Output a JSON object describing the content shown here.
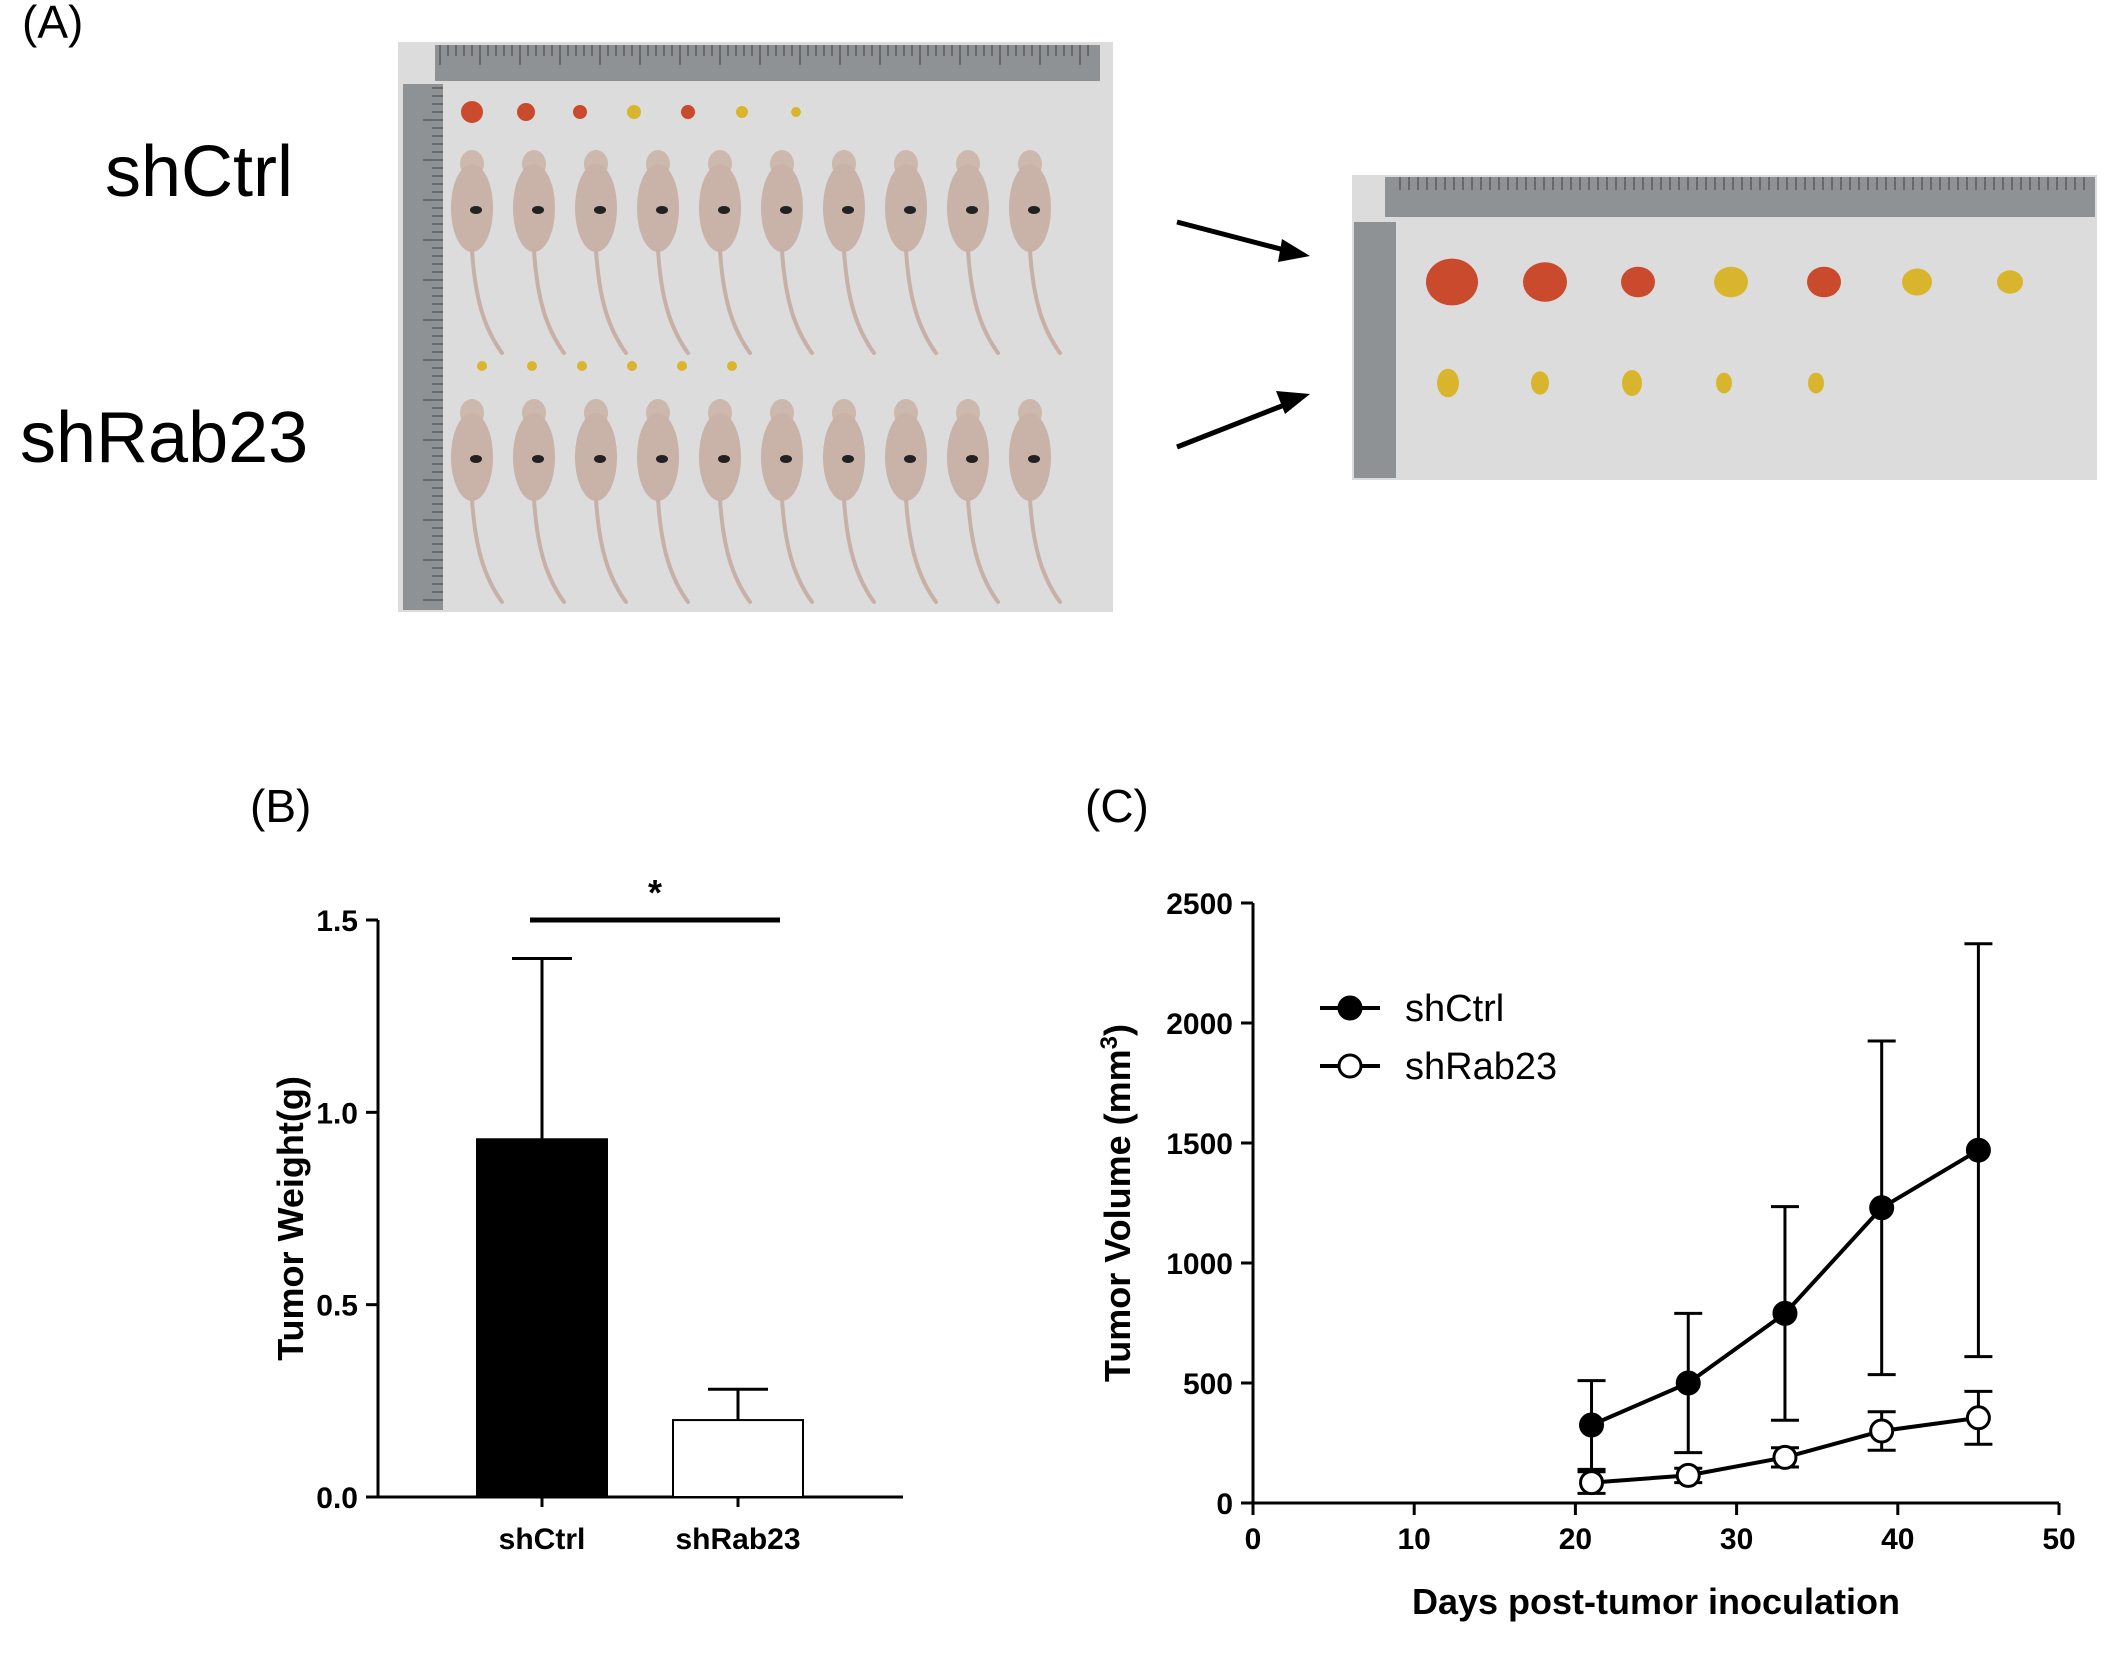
{
  "panel_a": {
    "letter": "(A)",
    "group_labels": [
      "shCtrl",
      "shRab23"
    ]
  },
  "colors": {
    "photo_background": "#d9dadb",
    "ruler": "#8c8f92",
    "mouse": "#c9b2a8",
    "tumor_red": "#c94a2c",
    "tumor_yellow": "#d9b52e"
  },
  "chart_data": [
    {
      "panel": "(B)",
      "type": "bar",
      "categories": [
        "shCtrl",
        "shRab23"
      ],
      "values": [
        0.93,
        0.2
      ],
      "error_upper": [
        0.47,
        0.08
      ],
      "bar_colors": [
        "#000000",
        "#ffffff"
      ],
      "ylabel": "Tumor Weight(g)",
      "ylim": [
        0,
        1.5
      ],
      "yticks": [
        "0.0",
        "0.5",
        "1.0",
        "1.5"
      ],
      "significance": "*",
      "grid": false
    },
    {
      "panel": "(C)",
      "type": "line",
      "x": [
        21,
        27,
        33,
        39,
        45
      ],
      "series": [
        {
          "name": "shCtrl",
          "values": [
            325,
            500,
            790,
            1230,
            1470
          ],
          "error": [
            185,
            290,
            445,
            695,
            860
          ],
          "marker": "filled-circle"
        },
        {
          "name": "shRab23",
          "values": [
            85,
            115,
            190,
            300,
            355
          ],
          "error": [
            45,
            30,
            40,
            80,
            110
          ],
          "marker": "open-circle"
        }
      ],
      "xlabel": "Days post-tumor inoculation",
      "ylabel_prefix": "Tumor Volume (mm",
      "ylabel_sup": "3",
      "ylabel_suffix": ")",
      "xlim": [
        0,
        50
      ],
      "ylim": [
        0,
        2500
      ],
      "xticks": [
        "0",
        "10",
        "20",
        "30",
        "40",
        "50"
      ],
      "yticks": [
        "0",
        "500",
        "1000",
        "1500",
        "2000",
        "2500"
      ],
      "legend_position": "top-left",
      "grid": false
    }
  ]
}
